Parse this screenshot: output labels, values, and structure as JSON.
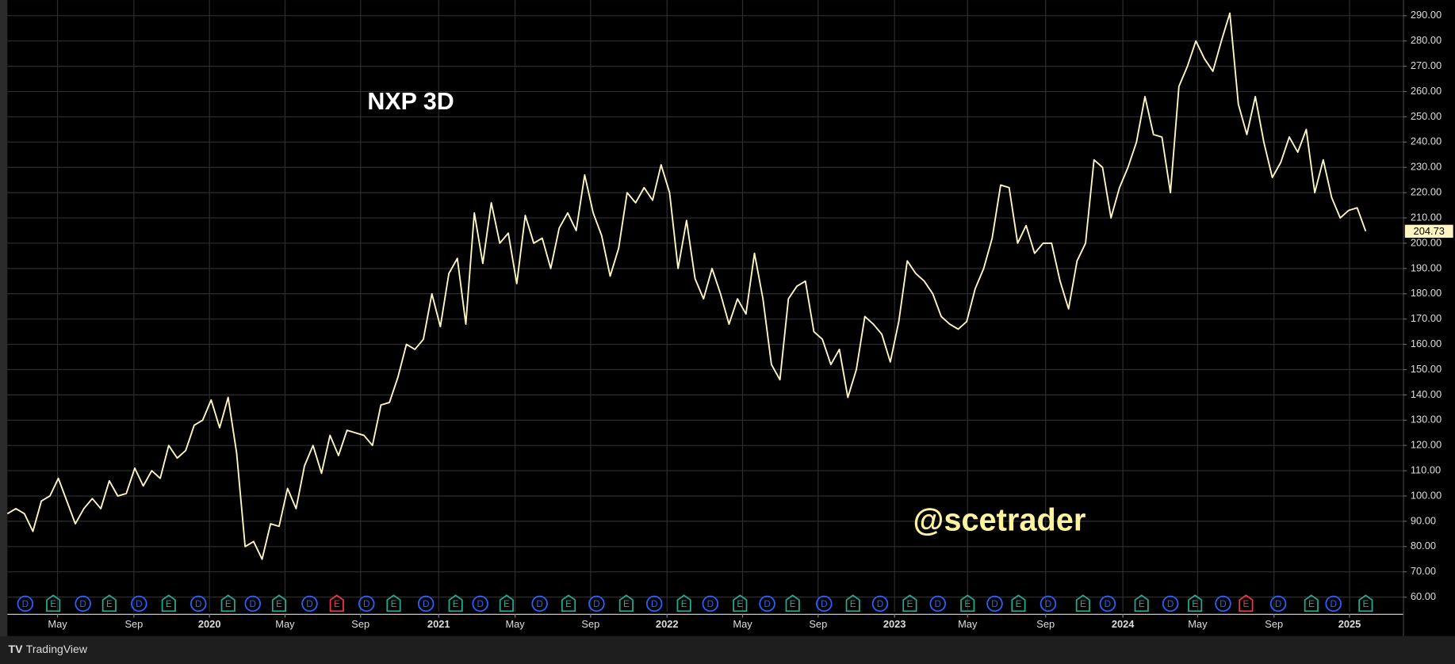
{
  "chart_data": {
    "type": "line",
    "title": "NXP 3D",
    "annotation": "@scetrader",
    "color": "#fff6c2",
    "values": [
      93,
      95,
      93,
      86,
      98,
      100,
      107,
      98,
      89,
      95,
      99,
      95,
      106,
      100,
      101,
      111,
      104,
      110,
      107,
      120,
      115,
      118,
      128,
      130,
      138,
      127,
      139,
      117,
      80,
      82,
      75,
      89,
      88,
      103,
      95,
      112,
      120,
      109,
      124,
      116,
      126,
      125,
      124,
      120,
      136,
      137,
      147,
      160,
      158,
      162,
      180,
      167,
      188,
      194,
      168,
      212,
      192,
      216,
      200,
      204,
      184,
      211,
      200,
      202,
      190,
      206,
      212,
      205,
      227,
      212,
      203,
      187,
      198,
      220,
      216,
      222,
      217,
      231,
      220,
      190,
      209,
      186,
      178,
      190,
      180,
      168,
      178,
      172,
      196,
      178,
      152,
      146,
      178,
      183,
      185,
      165,
      162,
      152,
      158,
      139,
      150,
      171,
      168,
      164,
      153,
      169,
      193,
      188,
      185,
      180,
      171,
      168,
      166,
      169,
      182,
      190,
      202,
      223,
      222,
      200,
      207,
      196,
      200,
      200,
      185,
      174,
      193,
      200,
      233,
      230,
      210,
      222,
      230,
      240,
      258,
      243,
      242,
      220,
      262,
      270,
      280,
      273,
      268,
      280,
      291,
      255,
      243,
      258,
      240,
      226,
      232,
      242,
      236,
      245,
      220,
      233,
      218,
      210,
      213,
      214,
      204.73
    ],
    "xlim": [
      0,
      164.4
    ],
    "xticks": [
      {
        "value": 5.9,
        "label": "May"
      },
      {
        "value": 14.9,
        "label": "Sep"
      },
      2020,
      {
        "value": 32.7,
        "label": "May"
      },
      {
        "value": 41.6,
        "label": "Sep"
      },
      2021,
      {
        "value": 59.8,
        "label": "May"
      },
      {
        "value": 68.7,
        "label": "Sep"
      },
      2022,
      {
        "value": 86.6,
        "label": "May"
      },
      {
        "value": 95.5,
        "label": "Sep"
      },
      2023,
      {
        "value": 113.1,
        "label": "May"
      },
      {
        "value": 122.3,
        "label": "Sep"
      },
      2024,
      {
        "value": 140.2,
        "label": "May"
      },
      {
        "value": 149.2,
        "label": "Sep"
      },
      2025
    ],
    "year_tick_positions": [
      23.8,
      50.8,
      77.7,
      104.5,
      131.4,
      158.1
    ],
    "ylim": [
      54.1,
      296.2
    ],
    "yticks": [
      {
        "value": 60,
        "label": "60.00"
      },
      {
        "value": 70,
        "label": "70.00"
      },
      {
        "value": 80,
        "label": "80.00"
      },
      {
        "value": 90,
        "label": "90.00"
      },
      {
        "value": 100,
        "label": "100.00"
      },
      {
        "value": 110,
        "label": "110.00"
      },
      {
        "value": 120,
        "label": "120.00"
      },
      {
        "value": 130,
        "label": "130.00"
      },
      {
        "value": 140,
        "label": "140.00"
      },
      {
        "value": 150,
        "label": "150.00"
      },
      {
        "value": 160,
        "label": "160.00"
      },
      {
        "value": 170,
        "label": "170.00"
      },
      {
        "value": 180,
        "label": "180.00"
      },
      {
        "value": 190,
        "label": "190.00"
      },
      {
        "value": 200,
        "label": "200.00"
      },
      {
        "value": 210,
        "label": "210.00"
      },
      {
        "value": 220,
        "label": "220.00"
      },
      {
        "value": 230,
        "label": "230.00"
      },
      {
        "value": 240,
        "label": "240.00"
      },
      {
        "value": 250,
        "label": "250.00"
      },
      {
        "value": 260,
        "label": "260.00"
      },
      {
        "value": 270,
        "label": "270.00"
      },
      {
        "value": 280,
        "label": "280.00"
      },
      {
        "value": 290,
        "label": "290.00"
      }
    ],
    "grid": true,
    "event_colors": {
      "D": "#2962ff",
      "E": "#22ab94"
    },
    "events": [
      {
        "x": 2.1,
        "label": "D"
      },
      {
        "x": 5.4,
        "label": "E"
      },
      {
        "x": 8.9,
        "label": "D"
      },
      {
        "x": 12.0,
        "label": "E"
      },
      {
        "x": 15.5,
        "label": "D"
      },
      {
        "x": 19.0,
        "label": "E"
      },
      {
        "x": 22.5,
        "label": "D"
      },
      {
        "x": 26.0,
        "label": "E"
      },
      {
        "x": 28.9,
        "label": "D"
      },
      {
        "x": 32.0,
        "label": "E"
      },
      {
        "x": 35.6,
        "label": "D"
      },
      {
        "x": 38.8,
        "label": "E",
        "color": "#f23645"
      },
      {
        "x": 42.3,
        "label": "D"
      },
      {
        "x": 45.5,
        "label": "E"
      },
      {
        "x": 49.3,
        "label": "D"
      },
      {
        "x": 52.8,
        "label": "E"
      },
      {
        "x": 55.7,
        "label": "D"
      },
      {
        "x": 58.8,
        "label": "E"
      },
      {
        "x": 62.7,
        "label": "D"
      },
      {
        "x": 66.1,
        "label": "E"
      },
      {
        "x": 69.4,
        "label": "D"
      },
      {
        "x": 72.9,
        "label": "E"
      },
      {
        "x": 76.2,
        "label": "D"
      },
      {
        "x": 79.7,
        "label": "E"
      },
      {
        "x": 82.8,
        "label": "D"
      },
      {
        "x": 86.3,
        "label": "E"
      },
      {
        "x": 89.5,
        "label": "D"
      },
      {
        "x": 92.5,
        "label": "E"
      },
      {
        "x": 96.2,
        "label": "D"
      },
      {
        "x": 99.6,
        "label": "E"
      },
      {
        "x": 102.8,
        "label": "D"
      },
      {
        "x": 106.3,
        "label": "E"
      },
      {
        "x": 109.6,
        "label": "D"
      },
      {
        "x": 113.1,
        "label": "E"
      },
      {
        "x": 116.3,
        "label": "D"
      },
      {
        "x": 119.1,
        "label": "E"
      },
      {
        "x": 122.6,
        "label": "D"
      },
      {
        "x": 126.7,
        "label": "E"
      },
      {
        "x": 129.6,
        "label": "D"
      },
      {
        "x": 133.6,
        "label": "E"
      },
      {
        "x": 137.0,
        "label": "D"
      },
      {
        "x": 139.9,
        "label": "E"
      },
      {
        "x": 143.2,
        "label": "D"
      },
      {
        "x": 145.9,
        "label": "E",
        "color": "#f23645"
      },
      {
        "x": 149.7,
        "label": "D"
      },
      {
        "x": 153.6,
        "label": "E"
      },
      {
        "x": 156.2,
        "label": "D"
      },
      {
        "x": 160.0,
        "label": "E"
      }
    ]
  },
  "footer": {
    "brand": "TradingView"
  }
}
